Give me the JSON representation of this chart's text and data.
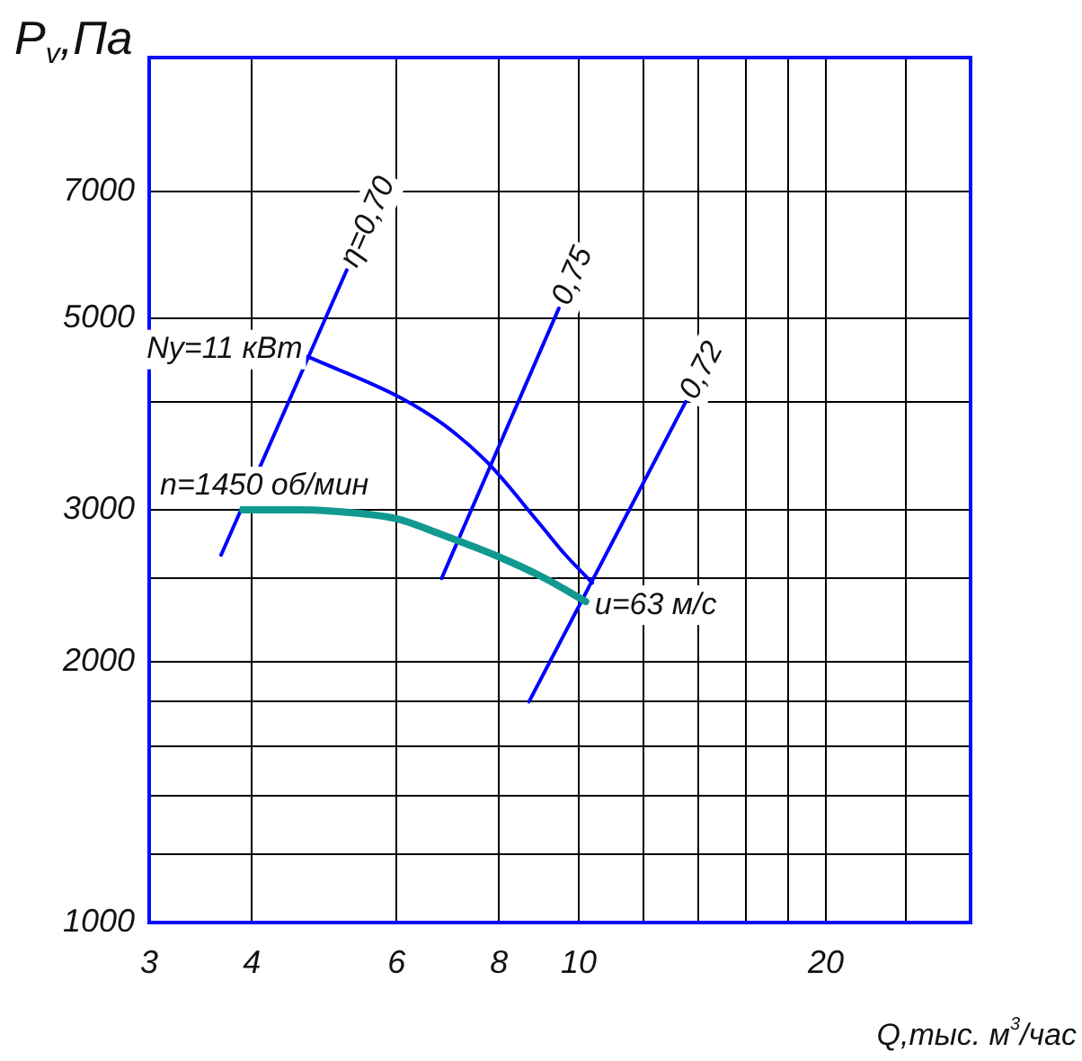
{
  "chart_data": {
    "type": "line",
    "xlabel": "Q,тыс. м$^{3}$/час",
    "ylabel": "P$_{v}$,Па",
    "log": "xy",
    "grid": true,
    "marker": "none",
    "xlim": [
      3,
      30
    ],
    "ylim": [
      1000,
      10000
    ],
    "xticks": [
      3,
      4,
      6,
      8,
      10,
      {
        "value": 12,
        "label": null
      },
      {
        "value": 14,
        "label": null
      },
      {
        "value": 16,
        "label": null
      },
      {
        "value": 18,
        "label": null
      },
      20,
      {
        "value": 25,
        "label": null
      }
    ],
    "yticks": [
      1000,
      {
        "value": 1200,
        "label": null
      },
      {
        "value": 1400,
        "label": null
      },
      {
        "value": 1600,
        "label": null
      },
      {
        "value": 1800,
        "label": null
      },
      2000,
      {
        "value": 2500,
        "label": null
      },
      3000,
      {
        "value": 4000,
        "label": null
      },
      5000,
      7000
    ],
    "series": [
      {
        "name": "n=1450 об/мин",
        "color": "#119990",
        "x": [
          3.9,
          4.5,
          5,
          6,
          6.8,
          7.9,
          9.1,
          10.2
        ],
        "values": [
          3000,
          3000,
          2990,
          2930,
          2810,
          2660,
          2500,
          2350
        ]
      },
      {
        "name": "Nу=11 кВт",
        "color": "#0000ff",
        "x": [
          4.68,
          6.08,
          6.86,
          7.75,
          8.94,
          9.64,
          10.39
        ],
        "values": [
          4510,
          4040,
          3760,
          3400,
          2900,
          2660,
          2470
        ]
      },
      {
        "name": "η=0,70",
        "color": "#0000ff",
        "x": [
          3.67,
          5.22
        ],
        "values": [
          2660,
          5680
        ]
      },
      {
        "name": "0,75",
        "color": "#0000ff",
        "x": [
          6.81,
          9.46
        ],
        "values": [
          2500,
          5130
        ]
      },
      {
        "name": "0,72",
        "color": "#0000ff",
        "x": [
          8.7,
          13.5
        ],
        "values": [
          1800,
          4000
        ]
      }
    ],
    "annotations": [
      {
        "text": "u=63 м/с",
        "x": 10.2,
        "y": 2350
      }
    ]
  }
}
